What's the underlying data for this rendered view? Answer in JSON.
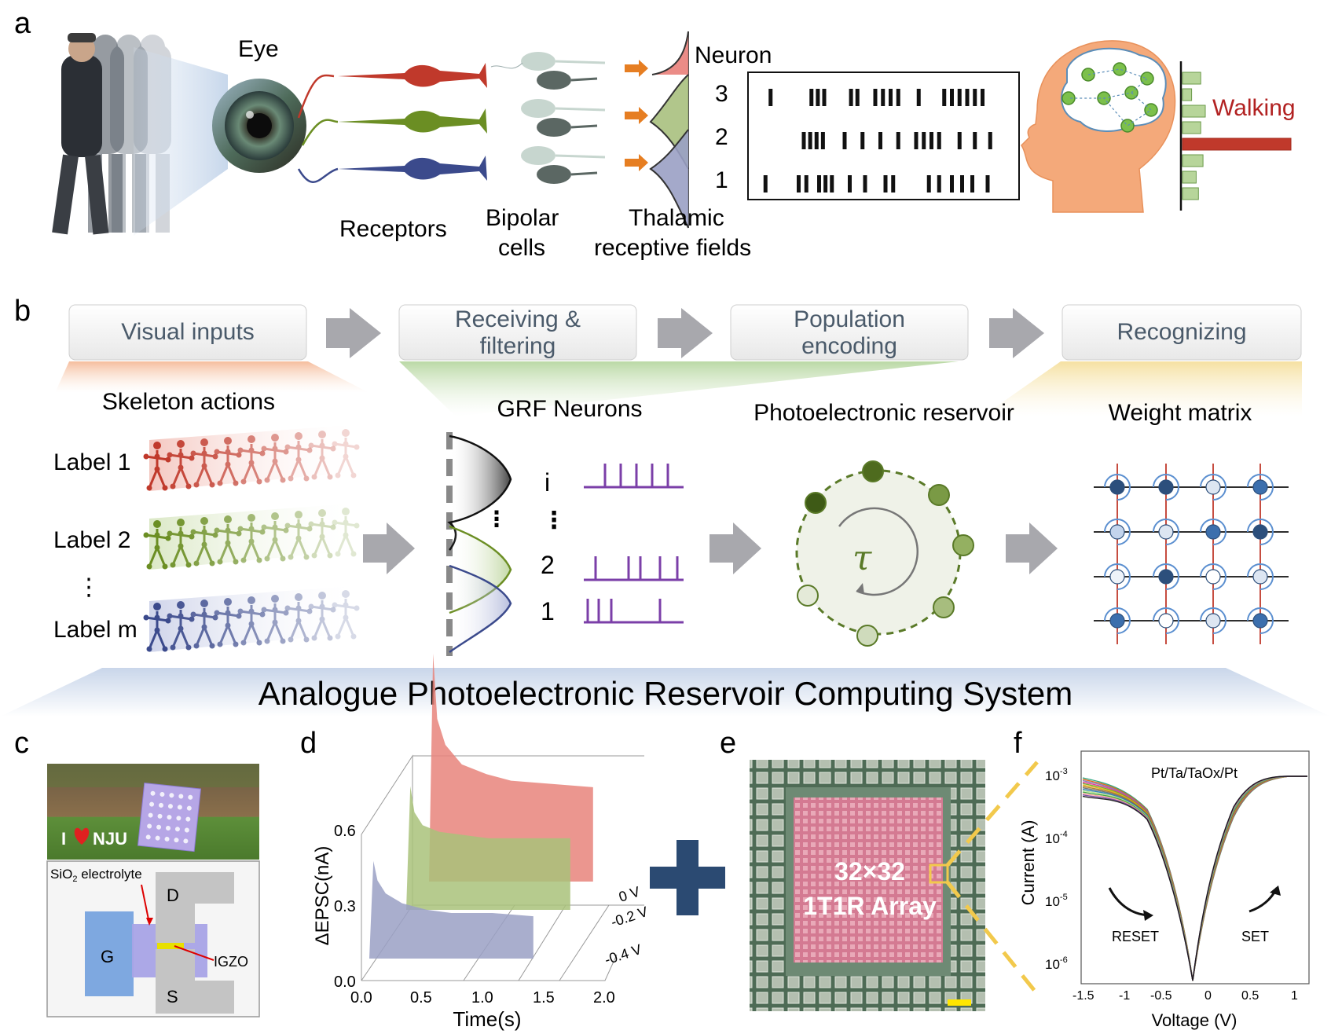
{
  "panel_a": {
    "letter": "a",
    "eye": "Eye",
    "receptors": "Receptors",
    "bipolar": [
      "Bipolar",
      "cells"
    ],
    "thalamic": [
      "Thalamic",
      "receptive fields"
    ],
    "neuron_header": "Neuron",
    "neuron_ids": [
      "3",
      "2",
      "1"
    ],
    "walking": "Walking",
    "raster": [
      [
        0.05,
        0.21,
        0.235,
        0.26,
        0.365,
        0.39,
        0.46,
        0.49,
        0.52,
        0.55,
        0.63,
        0.73,
        0.76,
        0.79,
        0.82,
        0.85,
        0.88
      ],
      [
        0.18,
        0.205,
        0.23,
        0.255,
        0.34,
        0.41,
        0.48,
        0.55,
        0.62,
        0.65,
        0.68,
        0.71,
        0.79,
        0.85,
        0.91
      ],
      [
        0.03,
        0.16,
        0.19,
        0.24,
        0.265,
        0.29,
        0.36,
        0.42,
        0.5,
        0.53,
        0.67,
        0.71,
        0.76,
        0.8,
        0.84,
        0.9
      ]
    ],
    "histogram": [
      0.4,
      0.2,
      0.5,
      0.4,
      1.0,
      0.45,
      0.3,
      0.35
    ],
    "neuron_colors": [
      "#c0392b",
      "#6b8e23",
      "#3b4a8c"
    ]
  },
  "panel_b": {
    "letter": "b",
    "steps": [
      {
        "label": [
          "Visual inputs"
        ]
      },
      {
        "label": [
          "Receiving &",
          "filtering"
        ]
      },
      {
        "label": [
          "Population",
          "encoding"
        ]
      },
      {
        "label": [
          "Recognizing"
        ]
      }
    ],
    "skeleton_title": "Skeleton actions",
    "labels": [
      "Label 1",
      "Label 2",
      "Label m"
    ],
    "grf_title": "GRF Neurons",
    "grf_ids": [
      "i",
      "2",
      "1"
    ],
    "reservoir_title": "Photoelectronic reservoir",
    "tau": "τ",
    "weight_title": "Weight matrix",
    "banner": "Analogue Photoelectronic Reservoir Computing System"
  },
  "panel_c": {
    "letter": "c",
    "sign_text": "I",
    "sign_text2": "NJU",
    "electrolyte": "SiO",
    "electrolyte_sub": "2",
    "electrolyte_rest": " electrolyte",
    "drain": "D",
    "gate": "G",
    "source": "S",
    "igzo": "IGZO"
  },
  "panel_d": {
    "letter": "d",
    "ylabel": "ΔEPSC(nA)",
    "xlabel": "Time(s)",
    "yticks": [
      "0.0",
      "0.3",
      "0.6"
    ],
    "xticks": [
      "0.0",
      "0.5",
      "1.0",
      "1.5",
      "2.0"
    ],
    "zticks": [
      "0 V",
      "-0.2 V",
      "-0.4 V"
    ]
  },
  "panel_e": {
    "letter": "e",
    "line1": "32×32",
    "line2": "1T1R Array"
  },
  "panel_f": {
    "letter": "f",
    "title": "Pt/Ta/TaOx/Pt",
    "ylabel": "Current (A)",
    "xlabel": "Voltage (V)",
    "reset": "RESET",
    "set": "SET",
    "yticks": [
      {
        "base": "10",
        "exp": "-3"
      },
      {
        "base": "10",
        "exp": "-4"
      },
      {
        "base": "10",
        "exp": "-5"
      },
      {
        "base": "10",
        "exp": "-6"
      }
    ],
    "xticks": [
      "-1.5",
      "-1",
      "-0.5",
      "0",
      "0.5",
      "1"
    ]
  },
  "chart_data": [
    {
      "type": "area",
      "panel": "d",
      "xlabel": "Time(s)",
      "ylabel": "ΔEPSC(nA)",
      "xlim": [
        0,
        2
      ],
      "ylim": [
        0,
        0.7
      ],
      "series": [
        {
          "name": "0 V",
          "color": "#e8847b",
          "x": [
            0.0,
            0.05,
            0.1,
            0.2,
            0.4,
            0.7,
            1.0,
            1.5,
            2.0
          ],
          "values": [
            0.0,
            0.7,
            0.5,
            0.42,
            0.36,
            0.33,
            0.31,
            0.3,
            0.29
          ]
        },
        {
          "name": "-0.2 V",
          "color": "#a9c27a",
          "x": [
            0.0,
            0.05,
            0.1,
            0.2,
            0.4,
            0.7,
            1.0,
            1.5,
            2.0
          ],
          "values": [
            0.0,
            0.38,
            0.3,
            0.26,
            0.24,
            0.23,
            0.22,
            0.22,
            0.22
          ]
        },
        {
          "name": "-0.4 V",
          "color": "#9aa0c4",
          "x": [
            0.0,
            0.05,
            0.1,
            0.2,
            0.4,
            0.7,
            1.0,
            1.5,
            2.0
          ],
          "values": [
            0.0,
            0.3,
            0.24,
            0.2,
            0.17,
            0.15,
            0.14,
            0.14,
            0.13
          ]
        }
      ]
    }
  ]
}
